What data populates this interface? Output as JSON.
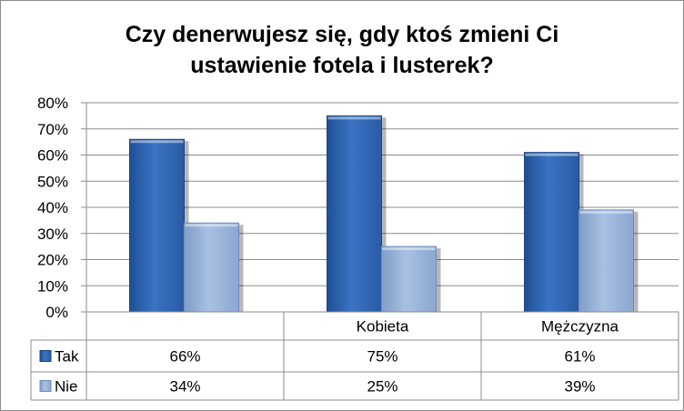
{
  "chart_data": {
    "type": "bar",
    "title_lines": [
      "Czy denerwujesz się, gdy ktoś zmieni Ci",
      "ustawienie fotela i lusterek?"
    ],
    "categories": [
      "",
      "Kobieta",
      "Mężczyzna"
    ],
    "series": [
      {
        "name": "Tak",
        "values": [
          66,
          75,
          61
        ],
        "labels": [
          "66%",
          "75%",
          "61%"
        ],
        "color": "#2e64b0"
      },
      {
        "name": "Nie",
        "values": [
          34,
          25,
          39
        ],
        "labels": [
          "34%",
          "25%",
          "39%"
        ],
        "color": "#94aed4"
      }
    ],
    "ylim": [
      0,
      80
    ],
    "yticks": [
      "0%",
      "10%",
      "20%",
      "30%",
      "40%",
      "50%",
      "60%",
      "70%",
      "80%"
    ],
    "grid": true,
    "legend": "data-table",
    "data_table": true
  }
}
